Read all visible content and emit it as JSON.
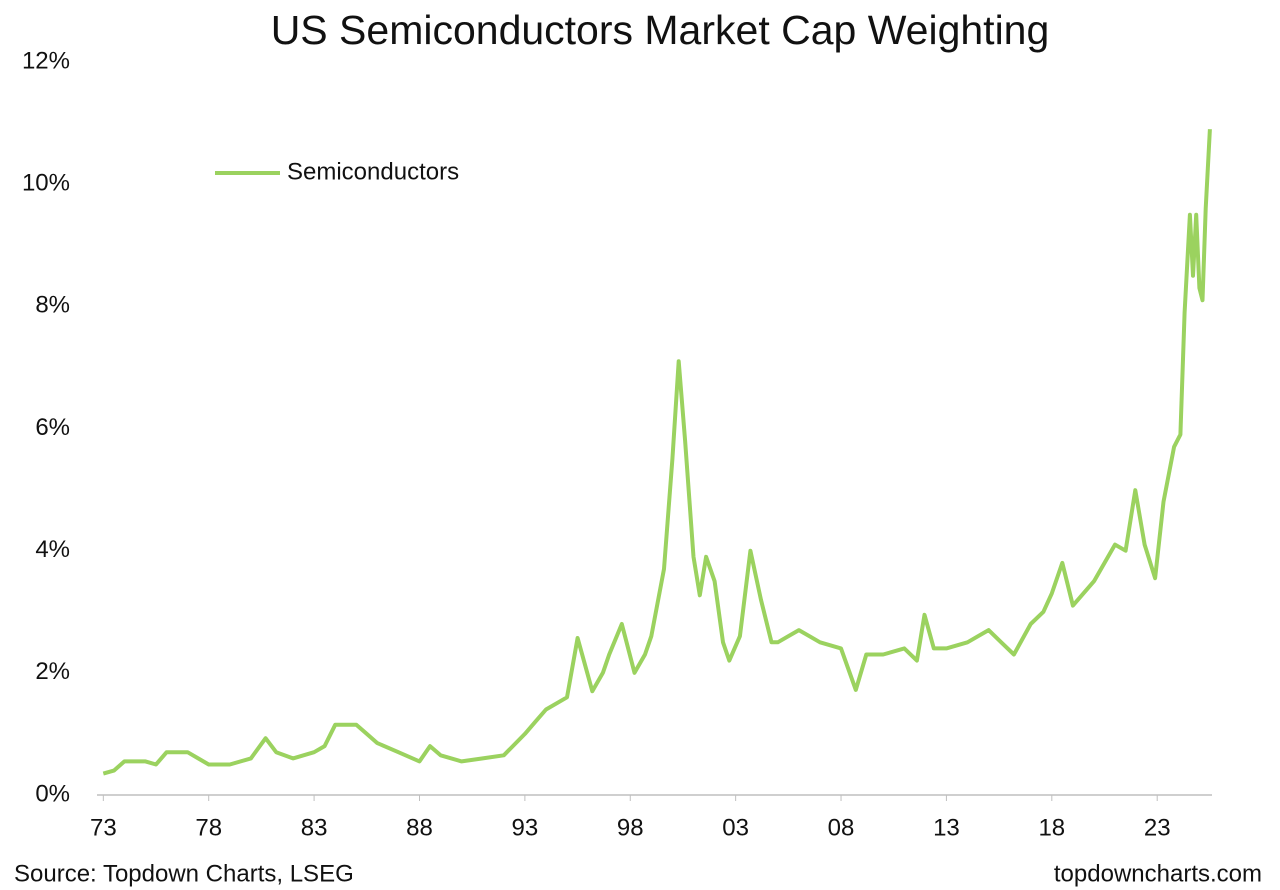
{
  "chart_data": {
    "type": "line",
    "title": "US Semiconductors Market Cap Weighting",
    "source": "Source: Topdown Charts, LSEG",
    "watermark": "topdowncharts.com",
    "legend": "upper left",
    "xlim": [
      1972.7,
      2025.6
    ],
    "ylim": [
      0,
      12
    ],
    "xticks": [
      {
        "value": 1973,
        "label": "73"
      },
      {
        "value": 1978,
        "label": "78"
      },
      {
        "value": 1983,
        "label": "83"
      },
      {
        "value": 1988,
        "label": "88"
      },
      {
        "value": 1993,
        "label": "93"
      },
      {
        "value": 1998,
        "label": "98"
      },
      {
        "value": 2003,
        "label": "03"
      },
      {
        "value": 2008,
        "label": "08"
      },
      {
        "value": 2013,
        "label": "13"
      },
      {
        "value": 2018,
        "label": "18"
      },
      {
        "value": 2023,
        "label": "23"
      }
    ],
    "yticks": [
      {
        "value": 0,
        "label": "0%"
      },
      {
        "value": 2,
        "label": "2%"
      },
      {
        "value": 4,
        "label": "4%"
      },
      {
        "value": 6,
        "label": "6%"
      },
      {
        "value": 8,
        "label": "8%"
      },
      {
        "value": 10,
        "label": "10%"
      },
      {
        "value": 12,
        "label": "12%"
      }
    ],
    "x": [
      1973,
      1973.5,
      1974,
      1975,
      1975.5,
      1976,
      1977,
      1977.5,
      1978,
      1979,
      1980,
      1980.7,
      1981.2,
      1982,
      1983,
      1983.5,
      1984,
      1985,
      1985.5,
      1986,
      1987,
      1988,
      1988.5,
      1989,
      1990,
      1991,
      1992,
      1993,
      1993.5,
      1994,
      1995,
      1995.5,
      1996.2,
      1996.7,
      1997,
      1997.6,
      1998.2,
      1998.7,
      1999,
      1999.6,
      2000,
      2000.3,
      2000.6,
      2001,
      2001.3,
      2001.6,
      2002,
      2002.4,
      2002.7,
      2003.2,
      2003.7,
      2004.2,
      2004.7,
      2005,
      2006,
      2007,
      2008,
      2008.7,
      2009.2,
      2010,
      2011,
      2011.6,
      2011.96,
      2012.4,
      2013,
      2014,
      2015,
      2015.6,
      2016.2,
      2017,
      2017.6,
      2018,
      2018.5,
      2019,
      2019.5,
      2020,
      2021,
      2021.5,
      2021.96,
      2022.4,
      2022.9,
      2023.3,
      2023.8,
      2024.1,
      2024.3,
      2024.55,
      2024.7,
      2024.85,
      2025.0,
      2025.15,
      2025.3,
      2025.5
    ],
    "series": [
      {
        "name": "Semiconductors",
        "color": "#9bd25f",
        "values": [
          0.35,
          0.4,
          0.55,
          0.55,
          0.5,
          0.7,
          0.7,
          0.6,
          0.5,
          0.5,
          0.6,
          0.93,
          0.7,
          0.6,
          0.7,
          0.8,
          1.15,
          1.15,
          1.0,
          0.85,
          0.7,
          0.55,
          0.8,
          0.65,
          0.55,
          0.6,
          0.65,
          1.0,
          1.2,
          1.4,
          1.6,
          2.57,
          1.7,
          2.0,
          2.3,
          2.8,
          2.0,
          2.3,
          2.6,
          3.7,
          5.5,
          7.1,
          5.8,
          3.9,
          3.27,
          3.9,
          3.5,
          2.5,
          2.2,
          2.6,
          4.0,
          3.2,
          2.5,
          2.5,
          2.7,
          2.5,
          2.4,
          1.72,
          2.3,
          2.3,
          2.4,
          2.2,
          2.95,
          2.4,
          2.4,
          2.5,
          2.7,
          2.5,
          2.3,
          2.8,
          3.0,
          3.3,
          3.8,
          3.1,
          3.3,
          3.5,
          4.1,
          4.0,
          4.99,
          4.1,
          3.55,
          4.8,
          5.7,
          5.9,
          7.9,
          9.5,
          8.5,
          9.5,
          8.3,
          8.1,
          9.6,
          10.9
        ]
      }
    ]
  }
}
